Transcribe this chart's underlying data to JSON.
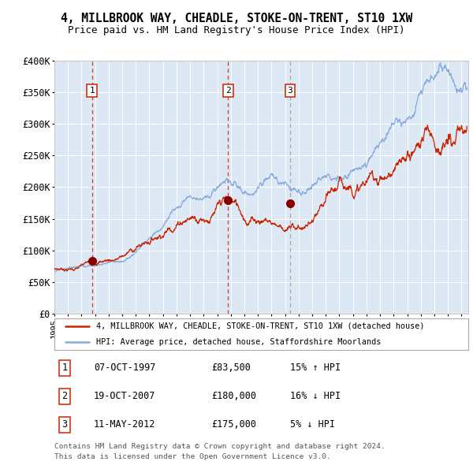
{
  "title1": "4, MILLBROOK WAY, CHEADLE, STOKE-ON-TRENT, ST10 1XW",
  "title2": "Price paid vs. HM Land Registry's House Price Index (HPI)",
  "plot_bg": "#dce9f5",
  "grid_color": "#ffffff",
  "fig_bg": "#ffffff",
  "red_line_color": "#cc2200",
  "blue_line_color": "#88aadd",
  "sale_marker_color": "#880000",
  "vline_red": "#cc2200",
  "vline_gray": "#999999",
  "ylim": [
    0,
    400000
  ],
  "yticks": [
    0,
    50000,
    100000,
    150000,
    200000,
    250000,
    300000,
    350000,
    400000
  ],
  "ytick_labels": [
    "£0",
    "£50K",
    "£100K",
    "£150K",
    "£200K",
    "£250K",
    "£300K",
    "£350K",
    "£400K"
  ],
  "xlim_start": 1995.0,
  "xlim_end": 2025.5,
  "sales": [
    {
      "num": 1,
      "date": "07-OCT-1997",
      "price": 83500,
      "year": 1997.77,
      "hpi_rel": "15% ↑ HPI",
      "vline": "red"
    },
    {
      "num": 2,
      "date": "19-OCT-2007",
      "price": 180000,
      "year": 2007.8,
      "hpi_rel": "16% ↓ HPI",
      "vline": "red"
    },
    {
      "num": 3,
      "date": "11-MAY-2012",
      "price": 175000,
      "year": 2012.37,
      "hpi_rel": "5% ↓ HPI",
      "vline": "gray"
    }
  ],
  "legend_label_red": "4, MILLBROOK WAY, CHEADLE, STOKE-ON-TRENT, ST10 1XW (detached house)",
  "legend_label_blue": "HPI: Average price, detached house, Staffordshire Moorlands",
  "table_rows": [
    [
      1,
      "07-OCT-1997",
      "£83,500",
      "15% ↑ HPI"
    ],
    [
      2,
      "19-OCT-2007",
      "£180,000",
      "16% ↓ HPI"
    ],
    [
      3,
      "11-MAY-2012",
      "£175,000",
      "5% ↓ HPI"
    ]
  ],
  "footnote1": "Contains HM Land Registry data © Crown copyright and database right 2024.",
  "footnote2": "This data is licensed under the Open Government Licence v3.0."
}
